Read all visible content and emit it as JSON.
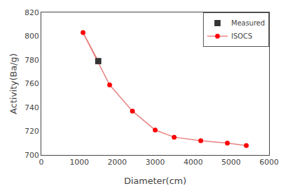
{
  "chart_data": {
    "type": "line",
    "xlabel": "Diameter(cm)",
    "ylabel": "Activity(Ba/g)",
    "xlim": [
      0,
      6000
    ],
    "ylim": [
      700,
      820
    ],
    "xticks": [
      0,
      1000,
      2000,
      3000,
      4000,
      5000,
      6000
    ],
    "yticks": [
      700,
      720,
      740,
      760,
      780,
      800,
      820
    ],
    "grid": false,
    "legend": "upper right",
    "series": [
      {
        "name": "Measured",
        "type": "scatter",
        "marker": "square",
        "color": "#333333",
        "x": [
          1500
        ],
        "values": [
          779
        ]
      },
      {
        "name": "ISOCS",
        "type": "line",
        "marker": "circle",
        "color": "#e88080",
        "colors": [
          "#ff0000",
          "#ff0000",
          "#ff0000",
          "#ff0000",
          "#ff0000",
          "#ff0000",
          "#ff0000",
          "#ff0000"
        ],
        "x": [
          1100,
          1800,
          2400,
          3000,
          3500,
          4200,
          4900,
          5400
        ],
        "values": [
          803,
          759,
          737,
          721,
          715,
          712,
          710,
          708
        ]
      }
    ]
  }
}
